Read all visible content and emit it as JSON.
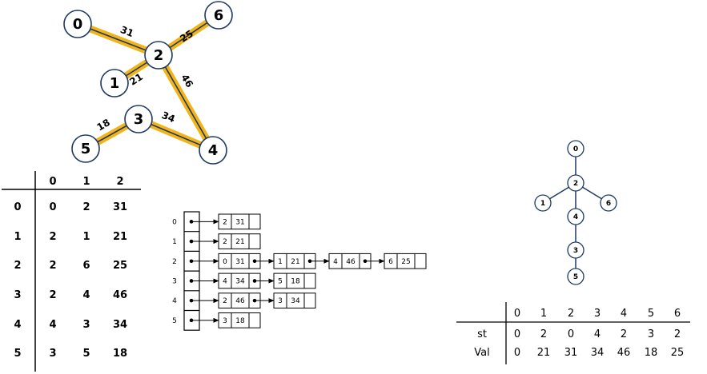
{
  "graph": {
    "nodes": [
      "0",
      "1",
      "2",
      "3",
      "4",
      "5",
      "6"
    ],
    "edges": [
      {
        "from": "0",
        "to": "2",
        "weight": "31"
      },
      {
        "from": "1",
        "to": "2",
        "weight": "21"
      },
      {
        "from": "2",
        "to": "6",
        "weight": "25"
      },
      {
        "from": "2",
        "to": "4",
        "weight": "46"
      },
      {
        "from": "3",
        "to": "4",
        "weight": "34"
      },
      {
        "from": "5",
        "to": "3",
        "weight": "18"
      }
    ],
    "highlight_color": "#f2b418",
    "edge_color": "#1f3864"
  },
  "edge_table": {
    "headers": [
      "0",
      "1",
      "2"
    ],
    "rows": [
      {
        "index": "0",
        "cells": [
          "0",
          "2",
          "31"
        ]
      },
      {
        "index": "1",
        "cells": [
          "2",
          "1",
          "21"
        ]
      },
      {
        "index": "2",
        "cells": [
          "2",
          "6",
          "25"
        ]
      },
      {
        "index": "3",
        "cells": [
          "2",
          "4",
          "46"
        ]
      },
      {
        "index": "4",
        "cells": [
          "4",
          "3",
          "34"
        ]
      },
      {
        "index": "5",
        "cells": [
          "3",
          "5",
          "18"
        ]
      }
    ]
  },
  "adjacency_list": {
    "rows": [
      {
        "index": "0",
        "nodes": [
          [
            "2",
            "31"
          ]
        ]
      },
      {
        "index": "1",
        "nodes": [
          [
            "2",
            "21"
          ]
        ]
      },
      {
        "index": "2",
        "nodes": [
          [
            "0",
            "31"
          ],
          [
            "1",
            "21"
          ],
          [
            "4",
            "46"
          ],
          [
            "6",
            "25"
          ]
        ]
      },
      {
        "index": "3",
        "nodes": [
          [
            "4",
            "34"
          ],
          [
            "5",
            "18"
          ]
        ]
      },
      {
        "index": "4",
        "nodes": [
          [
            "2",
            "46"
          ],
          [
            "3",
            "34"
          ]
        ]
      },
      {
        "index": "5",
        "nodes": [
          [
            "3",
            "18"
          ]
        ]
      }
    ]
  },
  "tree": {
    "nodes": [
      "0",
      "2",
      "1",
      "6",
      "4",
      "3",
      "5"
    ],
    "edges": [
      [
        "0",
        "2"
      ],
      [
        "2",
        "1"
      ],
      [
        "2",
        "6"
      ],
      [
        "2",
        "4"
      ],
      [
        "4",
        "3"
      ],
      [
        "3",
        "5"
      ]
    ]
  },
  "parent_table": {
    "headers": [
      "0",
      "1",
      "2",
      "3",
      "4",
      "5",
      "6"
    ],
    "rows": [
      {
        "label": "st",
        "values": [
          "0",
          "2",
          "0",
          "4",
          "2",
          "3",
          "2"
        ]
      },
      {
        "label": "Val",
        "values": [
          "0",
          "21",
          "31",
          "34",
          "46",
          "18",
          "25"
        ]
      }
    ]
  }
}
